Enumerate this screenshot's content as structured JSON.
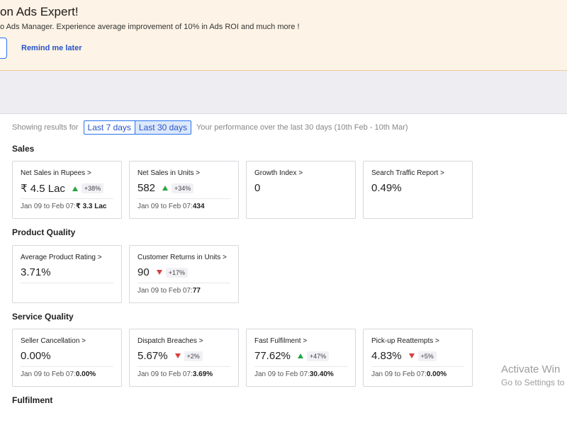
{
  "banner": {
    "title": "on Ads Expert!",
    "description": "o Ads Manager. Experience average improvement of 10% in Ads ROI and much more !",
    "remind_label": "Remind me later"
  },
  "results": {
    "prefix": "Showing results for",
    "options": [
      "Last 7 days",
      "Last 30 days"
    ],
    "selected": "Last 30 days",
    "note": "Your performance over the last 30 days (10th Feb - 10th Mar)"
  },
  "sections": [
    {
      "title": "Sales",
      "cards": [
        {
          "label": "Net Sales in Rupees >",
          "value": "₹ 4.5 Lac",
          "trend": "up",
          "change": "+38%",
          "period": "Jan 09 to Feb 07:",
          "prev": "₹ 3.3 Lac"
        },
        {
          "label": "Net Sales in Units >",
          "value": "582",
          "trend": "up",
          "change": "+34%",
          "period": "Jan 09 to Feb 07:",
          "prev": "434"
        },
        {
          "label": "Growth Index >",
          "value": "0"
        },
        {
          "label": "Search Traffic Report >",
          "value": "0.49%"
        }
      ]
    },
    {
      "title": "Product Quality",
      "cards": [
        {
          "label": "Average Product Rating >",
          "value": "3.71%"
        },
        {
          "label": "Customer Returns in Units >",
          "value": "90",
          "trend": "down",
          "change": "+17%",
          "period": "Jan 09 to Feb 07:",
          "prev": "77"
        }
      ]
    },
    {
      "title": "Service Quality",
      "cards": [
        {
          "label": "Seller Cancellation >",
          "value": "0.00%",
          "period": "Jan 09 to Feb 07:",
          "prev": "0.00%"
        },
        {
          "label": "Dispatch Breaches >",
          "value": "5.67%",
          "trend": "down",
          "change": "+2%",
          "period": "Jan 09 to Feb 07:",
          "prev": "3.69%"
        },
        {
          "label": "Fast Fulfilment >",
          "value": "77.62%",
          "trend": "up",
          "change": "+47%",
          "period": "Jan 09 to Feb 07:",
          "prev": "30.40%"
        },
        {
          "label": "Pick-up Reattempts >",
          "value": "4.83%",
          "trend": "down",
          "change": "+5%",
          "period": "Jan 09 to Feb 07:",
          "prev": "0.00%"
        }
      ]
    },
    {
      "title": "Fulfilment",
      "cards": []
    }
  ],
  "watermark": {
    "line1": "Activate Win",
    "line2": "Go to Settings to"
  },
  "colors": {
    "banner_bg": "#fdf3e6",
    "accent": "#2874f0",
    "up": "#26a541",
    "down": "#d63f3f"
  }
}
